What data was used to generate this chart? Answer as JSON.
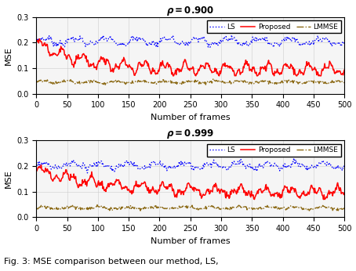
{
  "title1": "$\\boldsymbol{\\rho = 0.900}$",
  "title2": "$\\boldsymbol{\\rho = 0.999}$",
  "xlabel": "Number of frames",
  "ylabel": "MSE",
  "xlim": [
    0,
    500
  ],
  "ylim": [
    0,
    0.3
  ],
  "yticks": [
    0.0,
    0.1,
    0.2,
    0.3
  ],
  "xticks": [
    0,
    50,
    100,
    150,
    200,
    250,
    300,
    350,
    400,
    450,
    500
  ],
  "n_frames": 500,
  "ls_color": "#0000FF",
  "proposed_color": "#FF0000",
  "lmmse_color": "#8B6914",
  "figsize": [
    4.54,
    3.46
  ],
  "dpi": 100,
  "legend_labels": [
    "LS",
    "Proposed",
    "LMMSE"
  ],
  "caption": "Fig. 3: MSE comparison between our method, LS,"
}
